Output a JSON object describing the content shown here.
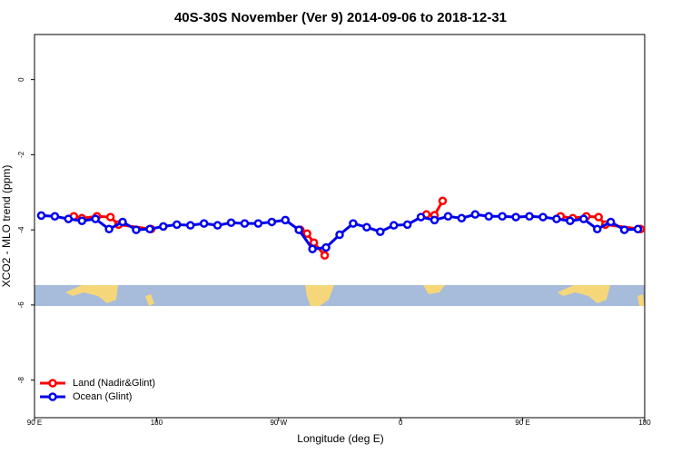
{
  "chart_data": {
    "type": "line",
    "title": "40S-30S November (Ver 9)   2014-09-06 to 2018-12-31",
    "x_label": "Longitude (deg E)",
    "y_label": "XCO2 - MLO trend (ppm)",
    "xlim": [
      90,
      540
    ],
    "ylim": [
      -9,
      1.2
    ],
    "xticks": [
      {
        "value": 90,
        "label": "90 E"
      },
      {
        "value": 180,
        "label": "180"
      },
      {
        "value": 270,
        "label": "90 W"
      },
      {
        "value": 360,
        "label": "0"
      },
      {
        "value": 450,
        "label": "90 E"
      },
      {
        "value": 540,
        "label": "180"
      }
    ],
    "yticks": [
      0,
      -2,
      -4,
      -6,
      -8
    ],
    "legend": "bottom-left",
    "series": [
      {
        "name": "Land (Nadir&Glint)",
        "color": "#ff0000",
        "x": [
          119,
          125,
          136,
          146,
          152,
          176,
          230,
          286,
          291,
          296,
          304,
          340,
          379,
          385,
          391,
          440,
          478,
          487,
          497,
          506,
          511,
          537
        ],
        "values": [
          -3.64,
          -3.69,
          -3.64,
          -3.66,
          -3.86,
          -3.98,
          null,
          -4.0,
          -4.1,
          -4.34,
          -4.68,
          null,
          -3.59,
          -3.61,
          -3.23,
          null,
          -3.64,
          -3.69,
          -3.64,
          -3.66,
          -3.86,
          -3.98
        ]
      },
      {
        "name": "Ocean (Glint)",
        "color": "#0000ee",
        "x": [
          95,
          105,
          115,
          125,
          135,
          145,
          155,
          165,
          175,
          185,
          195,
          205,
          215,
          225,
          235,
          245,
          255,
          265,
          275,
          285,
          295,
          305,
          315,
          325,
          335,
          345,
          355,
          365,
          375,
          385,
          395,
          405,
          415,
          425,
          435,
          445,
          455,
          465,
          475,
          485,
          495,
          505,
          515,
          525,
          535
        ],
        "values": [
          -3.62,
          -3.64,
          -3.71,
          -3.76,
          -3.71,
          -3.98,
          -3.79,
          -4.0,
          -3.98,
          -3.91,
          -3.86,
          -3.88,
          -3.83,
          -3.88,
          -3.81,
          -3.83,
          -3.83,
          -3.79,
          -3.74,
          -4.0,
          -4.51,
          -4.47,
          -4.13,
          -3.83,
          -3.93,
          -4.05,
          -3.88,
          -3.86,
          -3.66,
          -3.74,
          -3.64,
          -3.69,
          -3.59,
          -3.64,
          -3.64,
          -3.66,
          -3.64,
          -3.66,
          -3.71,
          -3.76,
          -3.71,
          -3.98,
          -3.79,
          -4.0,
          -3.98
        ]
      }
    ]
  }
}
